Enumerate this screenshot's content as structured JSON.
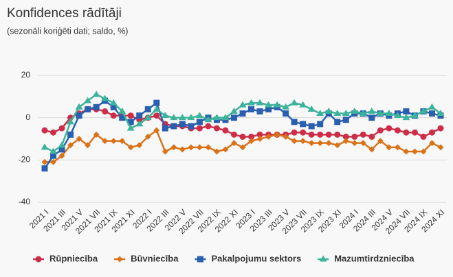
{
  "chart_data": {
    "type": "line",
    "title": "Konfidences rādītāji",
    "subtitle": "(sezonāli koriģēti dati; saldo, %)",
    "categories": [
      "2021 I",
      null,
      "2021 III",
      null,
      "2021 V",
      null,
      "2021 VII",
      null,
      "2021 IX",
      null,
      "2021 XI",
      null,
      "2022 I",
      null,
      "2022 III",
      null,
      "2022 V",
      null,
      "2022 VII",
      null,
      "2022 IX",
      null,
      "2022 XI",
      null,
      "2023 I",
      null,
      "2023 III",
      null,
      "2023 V",
      null,
      "2023 VII",
      null,
      "2023 IX",
      null,
      "2023 XI",
      null,
      "2024 I",
      null,
      "2024 III",
      null,
      "2024 V",
      null,
      "2024 VII",
      null,
      "2024 IX",
      null,
      "2024 XI"
    ],
    "series": [
      {
        "name": "Rūpniecība",
        "color": "#cc2e48",
        "marker": "circle",
        "values": [
          -6,
          -7,
          -5,
          0,
          2,
          4,
          4,
          3,
          1,
          1,
          1,
          -1,
          0,
          1,
          -3,
          -4,
          -4,
          -5,
          -5,
          -4,
          -5,
          -6,
          -8,
          -9,
          -9,
          -8,
          -8,
          -8,
          -8,
          -7,
          -7,
          -8,
          -8,
          -8,
          -8,
          -9,
          -9,
          -8,
          -9,
          -6,
          -5,
          -6,
          -7,
          -7,
          -9,
          -7,
          -5
        ]
      },
      {
        "name": "Būvniecība",
        "color": "#d9731a",
        "marker": "diamond",
        "values": [
          -21,
          -21,
          -18,
          -13,
          -10,
          -13,
          -8,
          -11,
          -11,
          -11,
          -14,
          -13,
          -9,
          -6,
          -16,
          -14,
          -15,
          -14,
          -14,
          -14,
          -16,
          -15,
          -12,
          -14,
          -11,
          -10,
          -9,
          -8,
          -9,
          -11,
          -11,
          -12,
          -12,
          -12,
          -13,
          -11,
          -12,
          -12,
          -15,
          -11,
          -14,
          -14,
          -16,
          -16,
          -16,
          -12,
          -14
        ]
      },
      {
        "name": "Pakalpojumu sektors",
        "color": "#2a5fb0",
        "marker": "square",
        "values": [
          -24,
          -18,
          -15,
          -8,
          1,
          4,
          5,
          8,
          5,
          0,
          -2,
          1,
          4,
          7,
          -5,
          -4,
          -3,
          -4,
          -2,
          0,
          -1,
          -1,
          0,
          2,
          4,
          3,
          4,
          5,
          2,
          -2,
          -3,
          -4,
          -3,
          2,
          -2,
          -1,
          2,
          2,
          0,
          2,
          1,
          2,
          3,
          1,
          3,
          2,
          1
        ]
      },
      {
        "name": "Mazumtirdzniecība",
        "color": "#3cb39a",
        "marker": "triangle",
        "values": [
          -14,
          -16,
          -13,
          -2,
          5,
          8,
          11,
          9,
          7,
          3,
          -5,
          -3,
          0,
          4,
          1,
          0,
          0,
          0,
          1,
          -1,
          0,
          0,
          3,
          6,
          7,
          7,
          6,
          6,
          5,
          7,
          6,
          4,
          2,
          3,
          2,
          2,
          3,
          2,
          3,
          2,
          2,
          1,
          0,
          1,
          3,
          5,
          2
        ]
      }
    ],
    "ylim": [
      -40,
      20
    ],
    "yticks": [
      -40,
      -20,
      0,
      20
    ],
    "grid": true
  }
}
